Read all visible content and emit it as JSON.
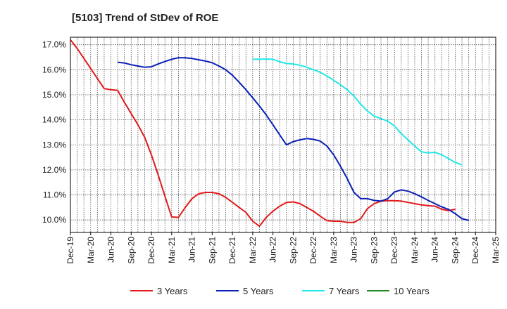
{
  "chart_data": {
    "type": "line",
    "title": "[5103]  Trend of StDev of ROE",
    "xlabel": "",
    "ylabel": "",
    "x_ticks": [
      "Dec-19",
      "Mar-20",
      "Jun-20",
      "Sep-20",
      "Dec-20",
      "Mar-21",
      "Jun-21",
      "Sep-21",
      "Dec-21",
      "Mar-22",
      "Jun-22",
      "Sep-22",
      "Dec-22",
      "Mar-23",
      "Jun-23",
      "Sep-23",
      "Dec-23",
      "Mar-24",
      "Jun-24",
      "Sep-24",
      "Dec-24",
      "Mar-25"
    ],
    "y_ticks": [
      "10.0%",
      "11.0%",
      "12.0%",
      "13.0%",
      "14.0%",
      "15.0%",
      "16.0%",
      "17.0%"
    ],
    "ylim": [
      9.5,
      17.3
    ],
    "grid": true,
    "legend_position": "bottom",
    "series": [
      {
        "name": "3 Years",
        "color": "#e31a1c",
        "start_index": 0,
        "values": [
          17.2,
          16.85,
          16.45,
          16.05,
          15.65,
          15.25,
          15.2,
          15.18,
          14.7,
          14.25,
          13.8,
          13.3,
          12.6,
          11.8,
          10.95,
          10.12,
          10.1,
          10.5,
          10.85,
          11.05,
          11.1,
          11.1,
          11.05,
          10.9,
          10.7,
          10.5,
          10.3,
          9.95,
          9.75,
          10.1,
          10.35,
          10.55,
          10.7,
          10.72,
          10.65,
          10.5,
          10.35,
          10.15,
          9.97,
          9.95,
          9.95,
          9.9,
          9.9,
          10.05,
          10.45,
          10.65,
          10.75,
          10.77,
          10.77,
          10.75,
          10.7,
          10.65,
          10.6,
          10.57,
          10.55,
          10.43,
          10.37,
          10.43
        ]
      },
      {
        "name": "5 Years",
        "color": "#0a1fb5",
        "start_index": 7,
        "values": [
          16.3,
          16.27,
          16.2,
          16.15,
          16.1,
          16.12,
          16.23,
          16.33,
          16.42,
          16.48,
          16.48,
          16.45,
          16.4,
          16.35,
          16.28,
          16.15,
          16.0,
          15.78,
          15.5,
          15.2,
          14.88,
          14.55,
          14.2,
          13.8,
          13.4,
          13.0,
          13.13,
          13.2,
          13.25,
          13.22,
          13.15,
          12.95,
          12.6,
          12.15,
          11.65,
          11.1,
          10.85,
          10.85,
          10.78,
          10.75,
          10.85,
          11.12,
          11.2,
          11.15,
          11.05,
          10.92,
          10.78,
          10.65,
          10.52,
          10.42,
          10.25,
          10.05,
          9.98
        ]
      },
      {
        "name": "7 Years",
        "color": "#22e8e8",
        "start_index": 27,
        "values": [
          16.42,
          16.42,
          16.43,
          16.42,
          16.32,
          16.25,
          16.23,
          16.18,
          16.1,
          16.0,
          15.9,
          15.75,
          15.58,
          15.4,
          15.2,
          14.95,
          14.62,
          14.35,
          14.15,
          14.05,
          13.95,
          13.75,
          13.45,
          13.2,
          12.95,
          12.72,
          12.68,
          12.7,
          12.6,
          12.45,
          12.3,
          12.2
        ]
      },
      {
        "name": "10 Years",
        "color": "#1e8a1e",
        "start_index": 0,
        "values": []
      }
    ]
  }
}
